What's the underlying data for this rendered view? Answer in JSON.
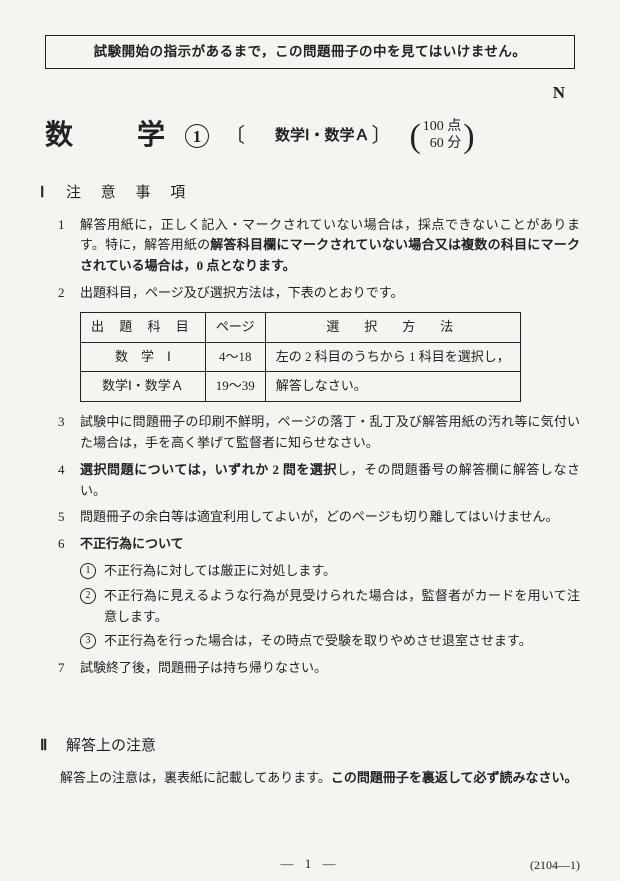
{
  "warning": "試験開始の指示があるまで，この問題冊子の中を見てはいけません。",
  "corner": "N",
  "title": {
    "subject": "数　学",
    "circled": "1",
    "bracket_l": "〔",
    "detail": "数学Ⅰ・数学Ａ",
    "bracket_r": "〕"
  },
  "score": {
    "points": "100 点",
    "time": "60 分"
  },
  "sec1": {
    "roman": "Ⅰ",
    "title": "注 意 事 項",
    "items": {
      "i1": {
        "n": "1",
        "a": "解答用紙に，正しく記入・マークされていない場合は，採点できないことがあります。特に，解答用紙の",
        "b": "解答科目欄にマークされていない場合又は複数の科目にマークされている場合は，0 点となります。"
      },
      "i2": {
        "n": "2",
        "t": "出題科目，ページ及び選択方法は，下表のとおりです。"
      },
      "i3": {
        "n": "3",
        "t": "試験中に問題冊子の印刷不鮮明，ページの落丁・乱丁及び解答用紙の汚れ等に気付いた場合は，手を高く挙げて監督者に知らせなさい。"
      },
      "i4": {
        "n": "4",
        "a": "選択問題については，いずれか 2 問を選択",
        "b": "し，その問題番号の解答欄に解答しなさい。"
      },
      "i5": {
        "n": "5",
        "t": "問題冊子の余白等は適宜利用してよいが，どのページも切り離してはいけません。"
      },
      "i6": {
        "n": "6",
        "t": "不正行為について"
      },
      "i7": {
        "n": "7",
        "t": "試験終了後，問題冊子は持ち帰りなさい。"
      }
    },
    "table": {
      "h1": "出 題 科 目",
      "h2": "ページ",
      "h3": "選　択　方　法",
      "r1c1": "数　学　Ⅰ",
      "r1c2": "4～18",
      "r1c3": "左の 2 科目のうちから 1 科目を選択し，",
      "r2c1": "数学Ⅰ・数学Ａ",
      "r2c2": "19～39",
      "r2c3": "解答しなさい。"
    },
    "subs": {
      "s1": {
        "n": "1",
        "t": "不正行為に対しては厳正に対処します。"
      },
      "s2": {
        "n": "2",
        "t": "不正行為に見えるような行為が見受けられた場合は，監督者がカードを用いて注意します。"
      },
      "s3": {
        "n": "3",
        "t": "不正行為を行った場合は，その時点で受験を取りやめさせ退室させます。"
      }
    }
  },
  "sec2": {
    "roman": "Ⅱ",
    "title": "解答上の注意",
    "a": "解答上の注意は，裏表紙に記載してあります。",
    "b": "この問題冊子を裏返して必ず読みなさい。"
  },
  "footer": {
    "page": "— 1 —",
    "ref": "(2104—1)"
  }
}
